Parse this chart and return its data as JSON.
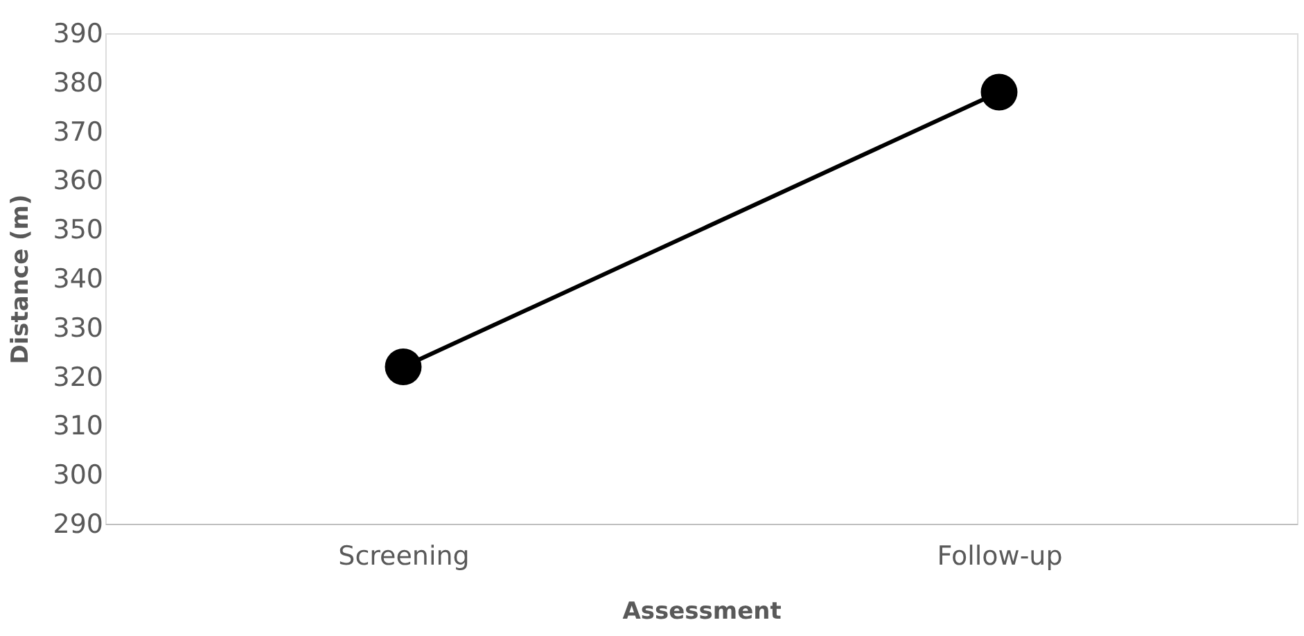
{
  "chart_data": {
    "type": "line",
    "xlabel": "Assessment",
    "ylabel": "Distance (m)",
    "categories": [
      "Screening",
      "Follow-up"
    ],
    "series": [
      {
        "color": "#000000",
        "values": [
          322,
          378
        ]
      }
    ],
    "ylim": [
      290,
      390
    ],
    "yticks": [
      290,
      300,
      310,
      320,
      330,
      340,
      350,
      360,
      370,
      380,
      390
    ],
    "grid": false,
    "marker": "circle",
    "line_style": "solid"
  }
}
